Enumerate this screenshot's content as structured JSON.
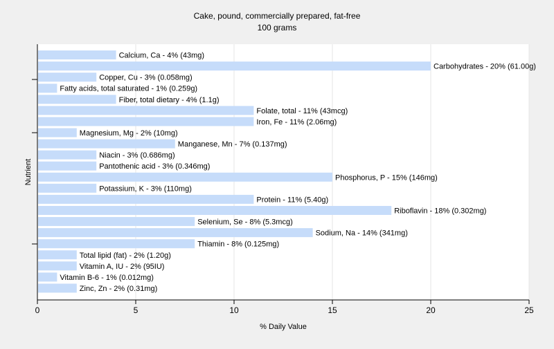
{
  "chart_data": {
    "type": "bar",
    "orientation": "horizontal",
    "title": "Cake, pound, commercially prepared, fat-free",
    "subtitle": "100 grams",
    "xlabel": "% Daily Value",
    "ylabel": "Nutrient",
    "xlim": [
      0,
      25
    ],
    "xticks": [
      0,
      5,
      10,
      15,
      20,
      25
    ],
    "grid": true,
    "bar_color": "#c6dcfa",
    "background": "#f0f0f0",
    "plot_background": "#ffffff",
    "categories": [
      "Calcium, Ca",
      "Carbohydrates",
      "Copper, Cu",
      "Fatty acids, total saturated",
      "Fiber, total dietary",
      "Folate, total",
      "Iron, Fe",
      "Magnesium, Mg",
      "Manganese, Mn",
      "Niacin",
      "Pantothenic acid",
      "Phosphorus, P",
      "Potassium, K",
      "Protein",
      "Riboflavin",
      "Selenium, Se",
      "Sodium, Na",
      "Thiamin",
      "Total lipid (fat)",
      "Vitamin A, IU",
      "Vitamin B-6",
      "Zinc, Zn"
    ],
    "values": [
      4,
      20,
      3,
      1,
      4,
      11,
      11,
      2,
      7,
      3,
      3,
      15,
      3,
      11,
      18,
      8,
      14,
      8,
      2,
      2,
      1,
      2
    ],
    "labels": [
      "Calcium, Ca - 4% (43mg)",
      "Carbohydrates - 20% (61.00g)",
      "Copper, Cu - 3% (0.058mg)",
      "Fatty acids, total saturated - 1% (0.259g)",
      "Fiber, total dietary - 4% (1.1g)",
      "Folate, total - 11% (43mcg)",
      "Iron, Fe - 11% (2.06mg)",
      "Magnesium, Mg - 2% (10mg)",
      "Manganese, Mn - 7% (0.137mg)",
      "Niacin - 3% (0.686mg)",
      "Pantothenic acid - 3% (0.346mg)",
      "Phosphorus, P - 15% (146mg)",
      "Potassium, K - 3% (110mg)",
      "Protein - 11% (5.40g)",
      "Riboflavin - 18% (0.302mg)",
      "Selenium, Se - 8% (5.3mcg)",
      "Sodium, Na - 14% (341mg)",
      "Thiamin - 8% (0.125mg)",
      "Total lipid (fat) - 2% (1.20g)",
      "Vitamin A, IU - 2% (95IU)",
      "Vitamin B-6 - 1% (0.012mg)",
      "Zinc, Zn - 2% (0.31mg)"
    ]
  }
}
